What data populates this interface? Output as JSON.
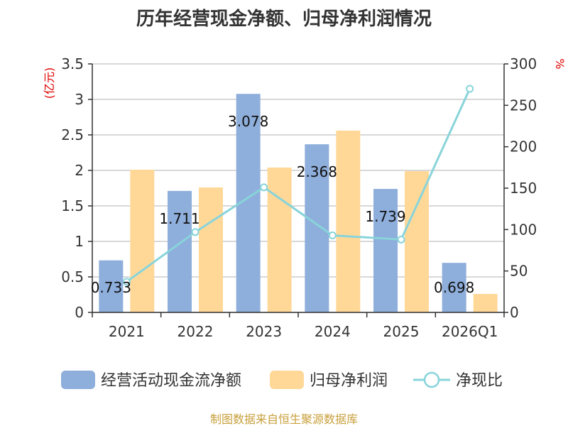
{
  "chart_data": {
    "type": "bar",
    "title": "历年经营现金净额、归母净利润情况",
    "categories": [
      "2021",
      "2022",
      "2023",
      "2024",
      "2025",
      "2026Q1"
    ],
    "y_left": {
      "unit": "(亿元)",
      "ylim": [
        0,
        3.5
      ],
      "ticks": [
        "0",
        "0.5",
        "1",
        "1.5",
        "2",
        "2.5",
        "3",
        "3.5"
      ]
    },
    "y_right": {
      "unit": "%",
      "ylim": [
        0,
        300
      ],
      "ticks": [
        "0",
        "50",
        "100",
        "150",
        "200",
        "250",
        "300"
      ]
    },
    "series": [
      {
        "name": "经营活动现金流净额",
        "type": "bar",
        "axis": "left",
        "color": "#8eaedb",
        "values": [
          0.733,
          1.711,
          3.078,
          2.368,
          1.739,
          0.698
        ],
        "labels": [
          "0.733",
          "1.711",
          "3.078",
          "2.368",
          "1.739",
          "0.698"
        ]
      },
      {
        "name": "归母净利润",
        "type": "bar",
        "axis": "left",
        "color": "#ffd898",
        "values": [
          2.01,
          1.76,
          2.04,
          2.56,
          1.99,
          0.26
        ]
      },
      {
        "name": "净现比",
        "type": "line",
        "axis": "right",
        "color": "#88d4da",
        "values": [
          37,
          97,
          151,
          93,
          88,
          270
        ]
      }
    ],
    "grid": true,
    "legend_position": "bottom"
  },
  "source_text": "制图数据来自恒生聚源数据库"
}
